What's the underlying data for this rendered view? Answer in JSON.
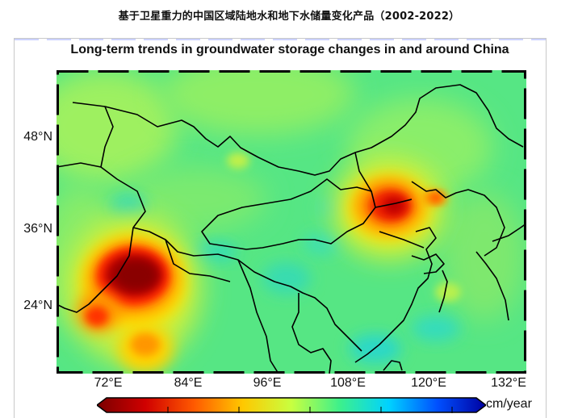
{
  "page_title": "基于卫星重力的中国区域陆地水和地下水储量变化产品（2002-2022）",
  "map": {
    "title": "Long-term trends in groundwater storage changes in and around China",
    "lat_labels": [
      "48°N",
      "36°N",
      "24°N"
    ],
    "lon_labels": [
      "72°E",
      "84°E",
      "96°E",
      "108°E",
      "120°E",
      "132°E"
    ],
    "colorbar_unit": "cm/year",
    "colorbar_colors": [
      "#7a0000",
      "#d00000",
      "#ff5a00",
      "#ffc800",
      "#c8ff40",
      "#3cf08c",
      "#00d2ff",
      "#0050ff",
      "#0000a0"
    ]
  }
}
